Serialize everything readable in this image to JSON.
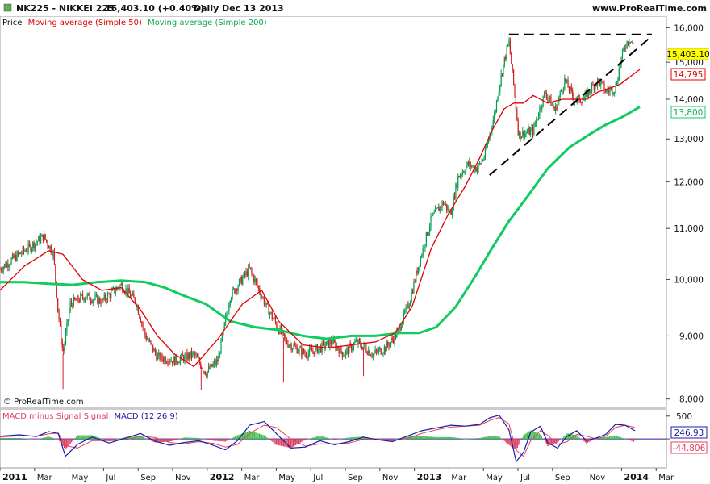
{
  "header": {
    "symbol": "NK225 - NIKKEI 225",
    "price_change": "15,403.10 (+0.40%)",
    "period": "Daily",
    "date": "Dec 13 2013",
    "site": "www.ProRealTime.com",
    "watermark": "© ProRealTime.com"
  },
  "legend": {
    "price": "Price",
    "ma50": "Moving average (Simple 50)",
    "ma200": "Moving average (Simple 200)"
  },
  "colors": {
    "up": "#00a050",
    "down": "#d42020",
    "ma50": "#e00000",
    "ma200": "#10cc60",
    "macd": "#1c1ca8",
    "signal": "#e04060",
    "hist_pos": "#40c040",
    "hist_neg": "#e04060",
    "badge_price": "#ffff00"
  },
  "badges": {
    "last_price": "15,403.10",
    "ma50_value": "14,795",
    "ma200_value": "13,800",
    "macd_value": "246.93",
    "signal_value": "-44.806"
  },
  "macd_legend": {
    "hist_label": "MACD minus Signal Signal",
    "macd_label": "MACD (12 26 9)"
  },
  "chart_data": [
    {
      "type": "line",
      "title": "NK225 - NIKKEI 225 Daily",
      "xlabel": "",
      "ylabel": "",
      "ylim": [
        7900,
        16300
      ],
      "y_ticks": [
        "8,000",
        "9,000",
        "10,000",
        "11,000",
        "12,000",
        "13,000",
        "14,000",
        "15,000",
        "16,000"
      ],
      "x_ticks": [
        "2011",
        "Mar",
        "May",
        "Jul",
        "Sep",
        "Nov",
        "2012",
        "Mar",
        "May",
        "Jul",
        "Sep",
        "Nov",
        "2013",
        "Mar",
        "May",
        "Jul",
        "Sep",
        "Nov",
        "2014",
        "Mar"
      ],
      "months_range": [
        0,
        27.5
      ],
      "series": [
        {
          "name": "Price",
          "x": [
            0,
            0.7,
            1.3,
            1.8,
            2.2,
            2.4,
            2.6,
            2.9,
            3.5,
            4.2,
            5.0,
            5.6,
            6.0,
            6.5,
            7.2,
            8.0,
            8.5,
            9.0,
            9.5,
            10.3,
            11.0,
            11.8,
            12.6,
            13.2,
            13.7,
            14.2,
            14.7,
            15.4,
            15.9,
            16.4,
            16.9,
            17.4,
            17.8,
            18.3,
            18.6,
            18.9,
            19.3,
            19.7,
            20.0,
            20.4,
            20.7,
            21.0,
            21.4,
            22.0,
            22.5,
            22.9,
            23.3,
            23.7,
            24.1,
            24.4,
            24.7,
            25.0,
            25.4,
            25.6,
            25.8,
            26.0,
            26.2
          ],
          "values": [
            10200,
            10450,
            10650,
            10840,
            10500,
            9400,
            8700,
            9550,
            9700,
            9600,
            9900,
            9600,
            9000,
            8650,
            8600,
            8700,
            8400,
            8600,
            9700,
            10200,
            9500,
            8900,
            8700,
            8800,
            8900,
            8700,
            8900,
            8700,
            8800,
            9050,
            9600,
            10500,
            11200,
            11550,
            11300,
            12100,
            12400,
            12300,
            12600,
            13600,
            14700,
            15600,
            13100,
            13200,
            14200,
            13700,
            14500,
            14000,
            14000,
            14300,
            14500,
            14200,
            14300,
            15000,
            15500,
            15700,
            15400
          ]
        },
        {
          "name": "Moving average (Simple 50)",
          "x": [
            0,
            1.0,
            2.0,
            2.6,
            3.4,
            4.2,
            5.0,
            5.8,
            6.5,
            7.2,
            8.0,
            9.0,
            10.0,
            10.8,
            11.5,
            12.5,
            13.5,
            14.5,
            15.5,
            16.3,
            17.0,
            17.8,
            18.5,
            19.2,
            19.8,
            20.3,
            20.8,
            21.2,
            21.6,
            22.0,
            22.6,
            23.2,
            23.8,
            24.2,
            24.7,
            25.2,
            25.6,
            26.0,
            26.4
          ],
          "values": [
            9800,
            10250,
            10550,
            10480,
            10000,
            9800,
            9850,
            9450,
            9000,
            8700,
            8500,
            8950,
            9550,
            9800,
            9250,
            8850,
            8800,
            8850,
            8900,
            9050,
            9500,
            10600,
            11300,
            11900,
            12550,
            13200,
            13750,
            13900,
            13900,
            14100,
            13900,
            14000,
            14000,
            14000,
            14200,
            14300,
            14400,
            14600,
            14800
          ]
        },
        {
          "name": "Moving average (Simple 200)",
          "x": [
            0,
            1.0,
            2.0,
            3.0,
            4.0,
            5.0,
            6.0,
            6.8,
            7.6,
            8.5,
            9.5,
            10.5,
            11.5,
            12.5,
            13.5,
            14.5,
            15.5,
            16.5,
            17.3,
            18.0,
            18.8,
            19.6,
            20.3,
            21.0,
            21.8,
            22.6,
            23.5,
            24.3,
            25.0,
            25.7,
            26.4
          ],
          "values": [
            9950,
            9950,
            9920,
            9900,
            9950,
            9980,
            9950,
            9850,
            9700,
            9550,
            9250,
            9150,
            9100,
            9000,
            8950,
            9000,
            9000,
            9050,
            9050,
            9150,
            9500,
            10050,
            10600,
            11150,
            11700,
            12300,
            12800,
            13100,
            13350,
            13550,
            13800
          ]
        }
      ],
      "trendlines": [
        {
          "name": "resistance",
          "x": [
            21.0,
            26.9
          ],
          "values": [
            15800,
            15800
          ]
        },
        {
          "name": "support",
          "x": [
            20.2,
            26.9
          ],
          "values": [
            12150,
            15750
          ]
        }
      ]
    },
    {
      "type": "line",
      "title": "MACD (12 26 9)",
      "ylim": [
        -600,
        620
      ],
      "y_ticks": [
        "500",
        "0"
      ],
      "series": [
        {
          "name": "MACD",
          "x": [
            0,
            0.8,
            1.5,
            2.0,
            2.4,
            2.7,
            3.2,
            3.8,
            4.5,
            5.2,
            5.8,
            6.4,
            7.0,
            7.6,
            8.2,
            8.8,
            9.3,
            9.8,
            10.3,
            10.9,
            11.4,
            12.0,
            12.6,
            13.2,
            13.8,
            14.4,
            15.0,
            15.6,
            16.2,
            16.8,
            17.4,
            18.0,
            18.6,
            19.2,
            19.8,
            20.2,
            20.6,
            21.0,
            21.3,
            21.6,
            21.9,
            22.3,
            22.6,
            23.0,
            23.4,
            23.8,
            24.2,
            24.6,
            25.0,
            25.4,
            25.8,
            26.2
          ],
          "values": [
            60,
            90,
            50,
            160,
            120,
            -380,
            -120,
            40,
            -90,
            20,
            120,
            -50,
            -140,
            -80,
            -40,
            -140,
            -240,
            -40,
            300,
            380,
            120,
            -200,
            -180,
            -40,
            -130,
            -60,
            40,
            -20,
            -60,
            60,
            180,
            240,
            300,
            280,
            320,
            460,
            520,
            200,
            -500,
            -300,
            150,
            280,
            -80,
            -200,
            60,
            180,
            -40,
            20,
            100,
            320,
            300,
            180
          ]
        },
        {
          "name": "Signal",
          "x": [
            0,
            0.8,
            1.5,
            2.0,
            2.4,
            2.7,
            3.2,
            3.8,
            4.5,
            5.2,
            5.8,
            6.4,
            7.0,
            7.6,
            8.2,
            8.8,
            9.3,
            9.8,
            10.3,
            10.9,
            11.4,
            12.0,
            12.6,
            13.2,
            13.8,
            14.4,
            15.0,
            15.6,
            16.2,
            16.8,
            17.4,
            18.0,
            18.6,
            19.2,
            19.8,
            20.2,
            20.6,
            21.0,
            21.3,
            21.6,
            21.9,
            22.3,
            22.6,
            23.0,
            23.4,
            23.8,
            24.2,
            24.6,
            25.0,
            25.4,
            25.8,
            26.2
          ],
          "values": [
            40,
            70,
            60,
            110,
            130,
            -150,
            -200,
            -40,
            -40,
            -20,
            60,
            30,
            -80,
            -110,
            -60,
            -100,
            -180,
            -120,
            120,
            300,
            250,
            0,
            -160,
            -110,
            -110,
            -90,
            -10,
            0,
            -40,
            10,
            120,
            200,
            260,
            280,
            300,
            400,
            470,
            330,
            -250,
            -380,
            -40,
            180,
            80,
            -120,
            -60,
            100,
            60,
            0,
            60,
            250,
            300,
            250
          ]
        }
      ]
    }
  ]
}
